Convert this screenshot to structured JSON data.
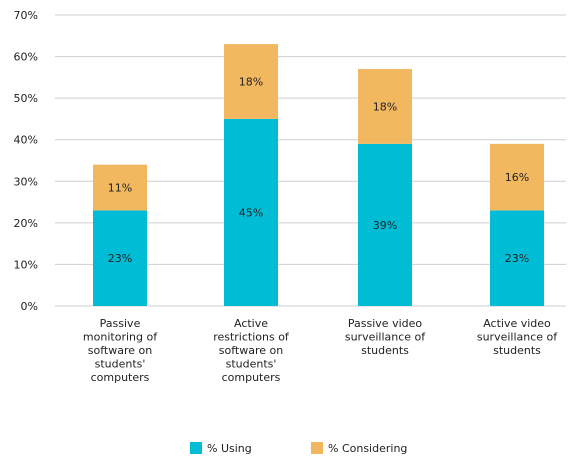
{
  "chart_data": {
    "type": "bar",
    "stacked": true,
    "categories": [
      [
        "Passive",
        "monitoring of",
        "software on",
        "students'",
        "computers"
      ],
      [
        "Active",
        "restrictions of",
        "software on",
        "students'",
        "computers"
      ],
      [
        "Passive video",
        "surveillance of",
        "students"
      ],
      [
        "Active video",
        "surveillance of",
        "students"
      ]
    ],
    "series": [
      {
        "name": "% Using",
        "values": [
          23,
          45,
          39,
          23
        ],
        "labels": [
          "23%",
          "45%",
          "39%",
          "23%"
        ]
      },
      {
        "name": "% Considering",
        "values": [
          11,
          18,
          18,
          16
        ],
        "labels": [
          "11%",
          "18%",
          "18%",
          "16%"
        ]
      }
    ],
    "ylim": [
      0,
      70
    ],
    "yticks": [
      0,
      10,
      20,
      30,
      40,
      50,
      60,
      70
    ],
    "ytick_labels": [
      "0%",
      "10%",
      "20%",
      "30%",
      "40%",
      "50%",
      "60%",
      "70%"
    ],
    "grid": true,
    "legend_position": "bottom-center",
    "colors": {
      "% Using": "#00bcd4",
      "% Considering": "#f2b860",
      "grid": "#cfcfcf"
    },
    "title": "",
    "xlabel": "",
    "ylabel": ""
  }
}
